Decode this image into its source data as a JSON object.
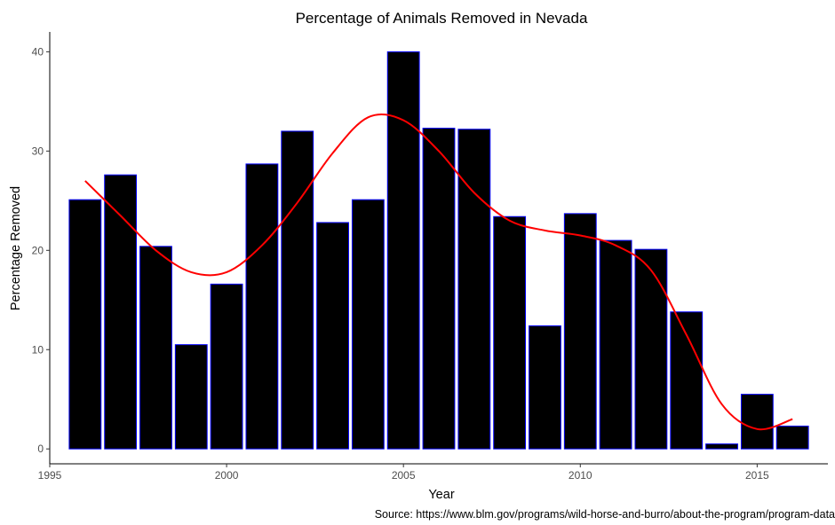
{
  "chart_data": {
    "type": "bar",
    "title": "Percentage of Animals Removed in Nevada",
    "xlabel": "Year",
    "ylabel": "Percentage Removed",
    "caption": "Source: https://www.blm.gov/programs/wild-horse-and-burro/about-the-program/program-data",
    "x": [
      1996,
      1997,
      1998,
      1999,
      2000,
      2001,
      2002,
      2003,
      2004,
      2005,
      2006,
      2007,
      2008,
      2009,
      2010,
      2011,
      2012,
      2013,
      2014,
      2015,
      2016
    ],
    "values": [
      25.1,
      27.6,
      20.4,
      10.5,
      16.6,
      28.7,
      32.0,
      22.8,
      25.1,
      40.0,
      32.3,
      32.2,
      23.4,
      12.4,
      23.7,
      21.0,
      20.1,
      13.8,
      0.5,
      5.5,
      2.3
    ],
    "smooth_line": {
      "x": [
        1996,
        1997,
        1998,
        1999,
        2000,
        2001,
        2002,
        2003,
        2004,
        2005,
        2006,
        2007,
        2008,
        2009,
        2010,
        2011,
        2012,
        2013,
        2014,
        2015,
        2016
      ],
      "y": [
        27.0,
        23.5,
        20.0,
        17.8,
        17.8,
        20.5,
        24.8,
        29.8,
        33.4,
        33.1,
        30.0,
        25.8,
        23.0,
        22.0,
        21.5,
        20.5,
        18.0,
        11.5,
        4.5,
        2.0,
        3.0
      ]
    },
    "xlim": [
      1995,
      2017
    ],
    "ylim": [
      -1.5,
      42
    ],
    "xticks": [
      1995,
      2000,
      2005,
      2010,
      2015
    ],
    "yticks": [
      0,
      10,
      20,
      30,
      40
    ],
    "grid": false,
    "legend": "none",
    "colors": {
      "bar_fill": "#000000",
      "bar_outline": "#0000ff",
      "smooth_line": "#ff0000"
    }
  }
}
